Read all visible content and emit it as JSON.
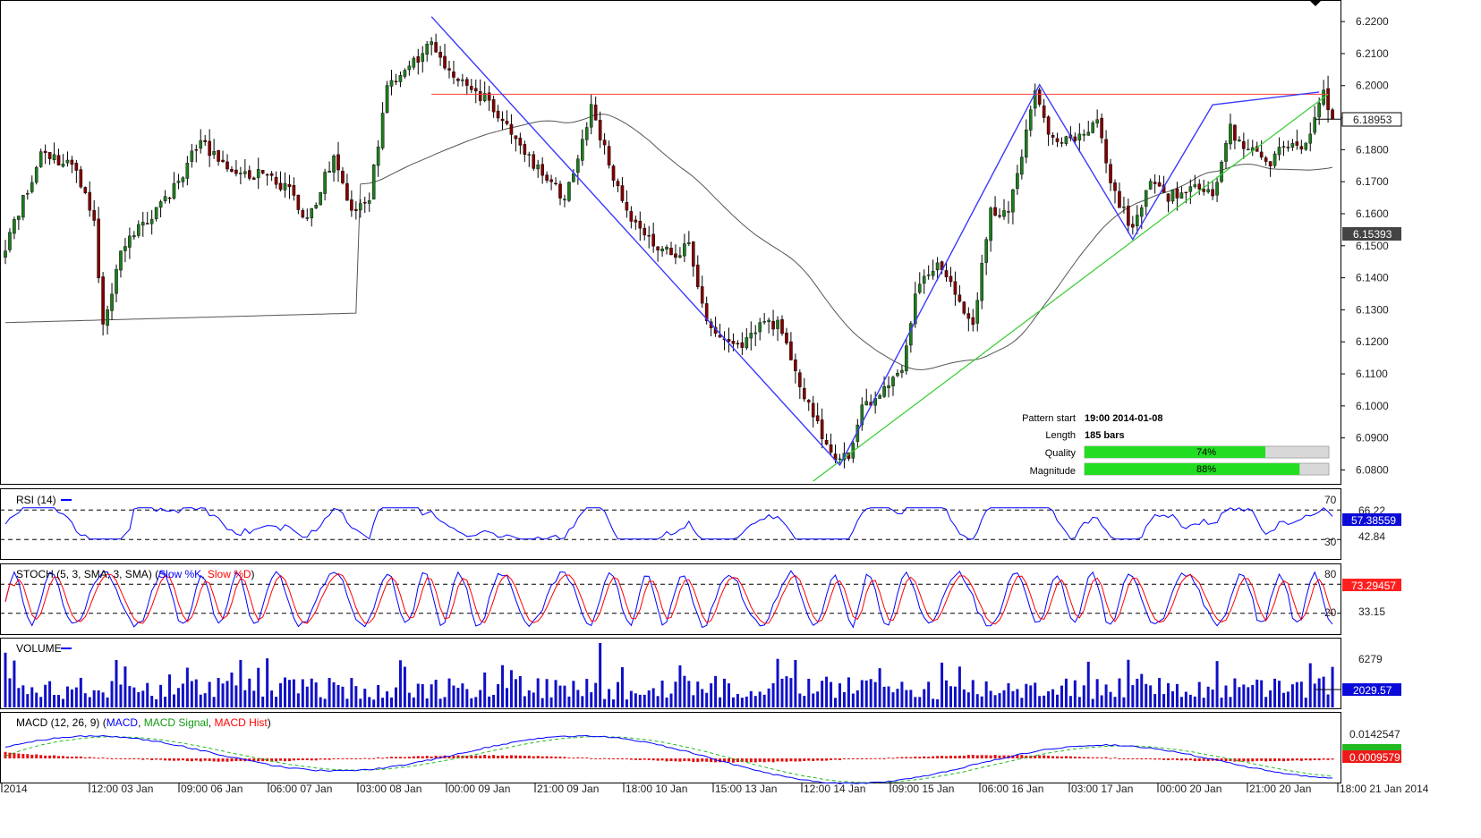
{
  "chart_data": {
    "type": "candlestick",
    "price_axis": {
      "ticks": [
        "6.2200",
        "6.2100",
        "6.2000",
        "6.1900",
        "6.1800",
        "6.1700",
        "6.1600",
        "6.1500",
        "6.1400",
        "6.1300",
        "6.1200",
        "6.1100",
        "6.1000",
        "6.0900",
        "6.0800"
      ],
      "ylim": [
        6.0765,
        6.2245
      ],
      "current_price": "6.18953",
      "ma_value": "6.15393"
    },
    "resistance_level": 6.1973,
    "time_labels": [
      "2014",
      "12:00 03 Jan",
      "09:00 06 Jan",
      "06:00 07 Jan",
      "03:00 08 Jan",
      "00:00 09 Jan",
      "21:00 09 Jan",
      "18:00 10 Jan",
      "15:00 13 Jan",
      "12:00 14 Jan",
      "09:00 15 Jan",
      "06:00 16 Jan",
      "03:00 17 Jan",
      "00:00 20 Jan",
      "21:00 20 Jan",
      "18:00 21 Jan 2014"
    ],
    "pattern": {
      "start_label": "Pattern start",
      "start_value": "19:00 2014-01-08",
      "length_label": "Length",
      "length_value": "185 bars",
      "quality_label": "Quality",
      "quality_value": 74,
      "quality_text": "74%",
      "magnitude_label": "Magnitude",
      "magnitude_value": 88,
      "magnitude_text": "88%",
      "zigzag": [
        {
          "bar": 96,
          "price": 6.2215
        },
        {
          "bar": 188,
          "price": 6.0815
        },
        {
          "bar": 233,
          "price": 6.2003
        },
        {
          "bar": 254,
          "price": 6.152
        },
        {
          "bar": 272,
          "price": 6.194
        },
        {
          "bar": 296,
          "price": 6.198
        }
      ],
      "support_line": [
        {
          "bar": 182,
          "price": 6.0765
        },
        {
          "bar": 298,
          "price": 6.1973
        }
      ]
    },
    "rsi": {
      "title": "RSI (14)",
      "levels": [
        "70",
        "30"
      ],
      "tick_labels": [
        "66.22",
        "42.84"
      ],
      "current": "57.38559"
    },
    "stoch": {
      "title": "STOCH (5, 3, SMA, 3, SMA)",
      "k_label": "Slow %K",
      "d_label": "Slow %D",
      "levels": [
        "80",
        "20"
      ],
      "tick_labels": [
        "33.15"
      ],
      "current": "73.29457"
    },
    "volume": {
      "title": "VOLUME",
      "tick_labels": [
        "6279"
      ],
      "current": "2029.57"
    },
    "macd": {
      "title": "MACD (12, 26, 9)",
      "macd_label": "MACD",
      "signal_label": "MACD Signal",
      "hist_label": "MACD Hist",
      "tick_labels": [
        "0.0142547"
      ],
      "current": "0.0009579"
    }
  },
  "colors": {
    "bull": "#1f7a1f",
    "bear": "#800000",
    "zigzag": "#3a3aff",
    "support": "#33cc33",
    "resistance": "#ff3b3b",
    "ma": "#555555",
    "tag_bg": "#0b0bd9",
    "volume": "#1010c8",
    "macd_hist": "#e41010",
    "macd_signal": "#22bb22"
  }
}
